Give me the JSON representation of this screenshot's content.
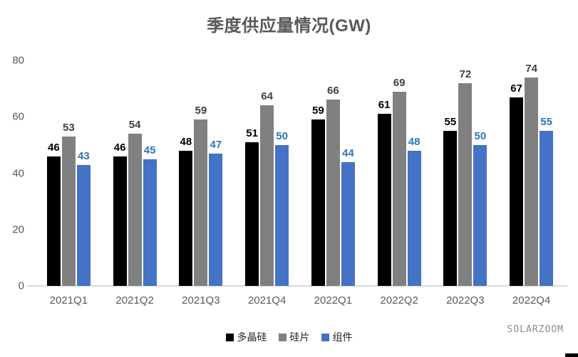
{
  "title": "季度供应量情况(GW)",
  "watermark": "SOLARZOOM",
  "colors": {
    "title_text": "#595959",
    "axis_text": "#595959",
    "axis_line": "#d9d9d9",
    "series_polysilicon": "#000000",
    "series_wafer": "#808080",
    "series_module": "#4472c4",
    "label_polysilicon": "#000000",
    "label_wafer": "#404040",
    "label_module": "#2e75b6"
  },
  "chart_data": {
    "type": "bar",
    "title": "季度供应量情况(GW)",
    "categories": [
      "2021Q1",
      "2021Q2",
      "2021Q3",
      "2021Q4",
      "2022Q1",
      "2022Q2",
      "2022Q3",
      "2022Q4"
    ],
    "series": [
      {
        "name": "多晶硅",
        "color": "#000000",
        "label_color": "#000000",
        "values": [
          46,
          46,
          48,
          51,
          59,
          61,
          55,
          67
        ]
      },
      {
        "name": "硅片",
        "color": "#808080",
        "label_color": "#404040",
        "values": [
          53,
          54,
          59,
          64,
          66,
          69,
          72,
          74
        ]
      },
      {
        "name": "组件",
        "color": "#4472c4",
        "label_color": "#2e75b6",
        "values": [
          43,
          45,
          47,
          50,
          44,
          48,
          50,
          55
        ]
      }
    ],
    "xlabel": "",
    "ylabel": "",
    "ylim": [
      0,
      80
    ],
    "yticks": [
      0,
      20,
      40,
      60,
      80
    ],
    "grid": false,
    "legend_position": "bottom",
    "data_labels": true
  }
}
